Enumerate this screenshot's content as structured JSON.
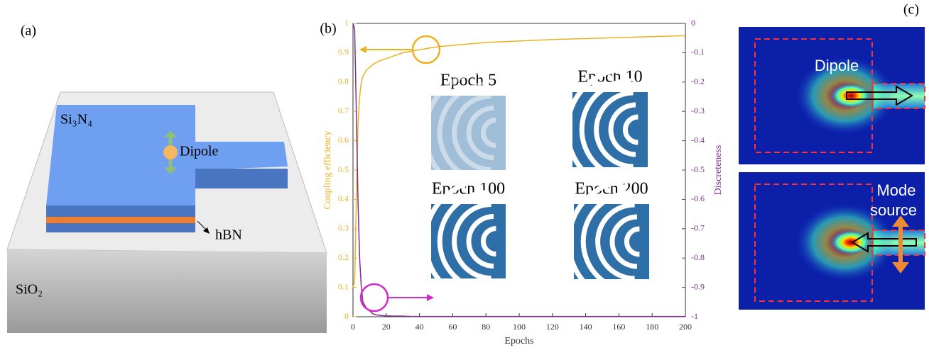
{
  "panel_a": {
    "label": "(a)",
    "top_layer": "Si₃N₄",
    "substrate": "SiO₂",
    "interlayer": "hBN",
    "emitter": "Dipole"
  },
  "chart_data": {
    "type": "line",
    "panel_label": "(b)",
    "xlabel": "Epochs",
    "ylabel": "Coupling efficiency",
    "y2label": "Discreteness",
    "x": [
      0,
      1,
      2,
      3,
      4,
      5,
      6,
      8,
      10,
      12,
      15,
      20,
      25,
      30,
      35,
      40,
      50,
      60,
      80,
      100,
      120,
      150,
      200
    ],
    "series": [
      {
        "color": "#edb120",
        "values": [
          0.1,
          0.12,
          0.4,
          0.65,
          0.75,
          0.8,
          0.82,
          0.84,
          0.85,
          0.86,
          0.87,
          0.88,
          0.89,
          0.9,
          0.905,
          0.91,
          0.92,
          0.925,
          0.935,
          0.94,
          0.945,
          0.95,
          0.958
        ]
      },
      {
        "color": "#7e2f8e",
        "axis": "y2",
        "values": [
          0,
          -0.02,
          -0.3,
          -0.6,
          -0.8,
          -0.9,
          -0.95,
          -0.97,
          -0.98,
          -0.99,
          -0.995,
          -0.997,
          -0.998,
          -0.998,
          -0.999,
          -0.999,
          -0.999,
          -0.999,
          -0.999,
          -0.999,
          -0.999,
          -0.999,
          -0.999
        ]
      }
    ],
    "xlim": [
      0,
      200
    ],
    "xticks": [
      0,
      20,
      40,
      60,
      80,
      100,
      120,
      140,
      160,
      180,
      200
    ],
    "ylim": [
      0,
      1
    ],
    "yticks": [
      0,
      0.1,
      0.2,
      0.3,
      0.4,
      0.5,
      0.6,
      0.7,
      0.8,
      0.9,
      1
    ],
    "y2lim": [
      -1,
      0
    ],
    "y2ticks": [
      0,
      -0.1,
      -0.2,
      -0.3,
      -0.4,
      -0.5,
      -0.6,
      -0.7,
      -0.8,
      -0.9,
      -1
    ],
    "insets": [
      "Epoch 5",
      "Epoch 10",
      "Epoch 100",
      "Epoch 200"
    ]
  },
  "panel_c": {
    "label": "(c)",
    "top_caption": "Dipole",
    "bottom_caption": [
      "Mode",
      "source"
    ]
  }
}
